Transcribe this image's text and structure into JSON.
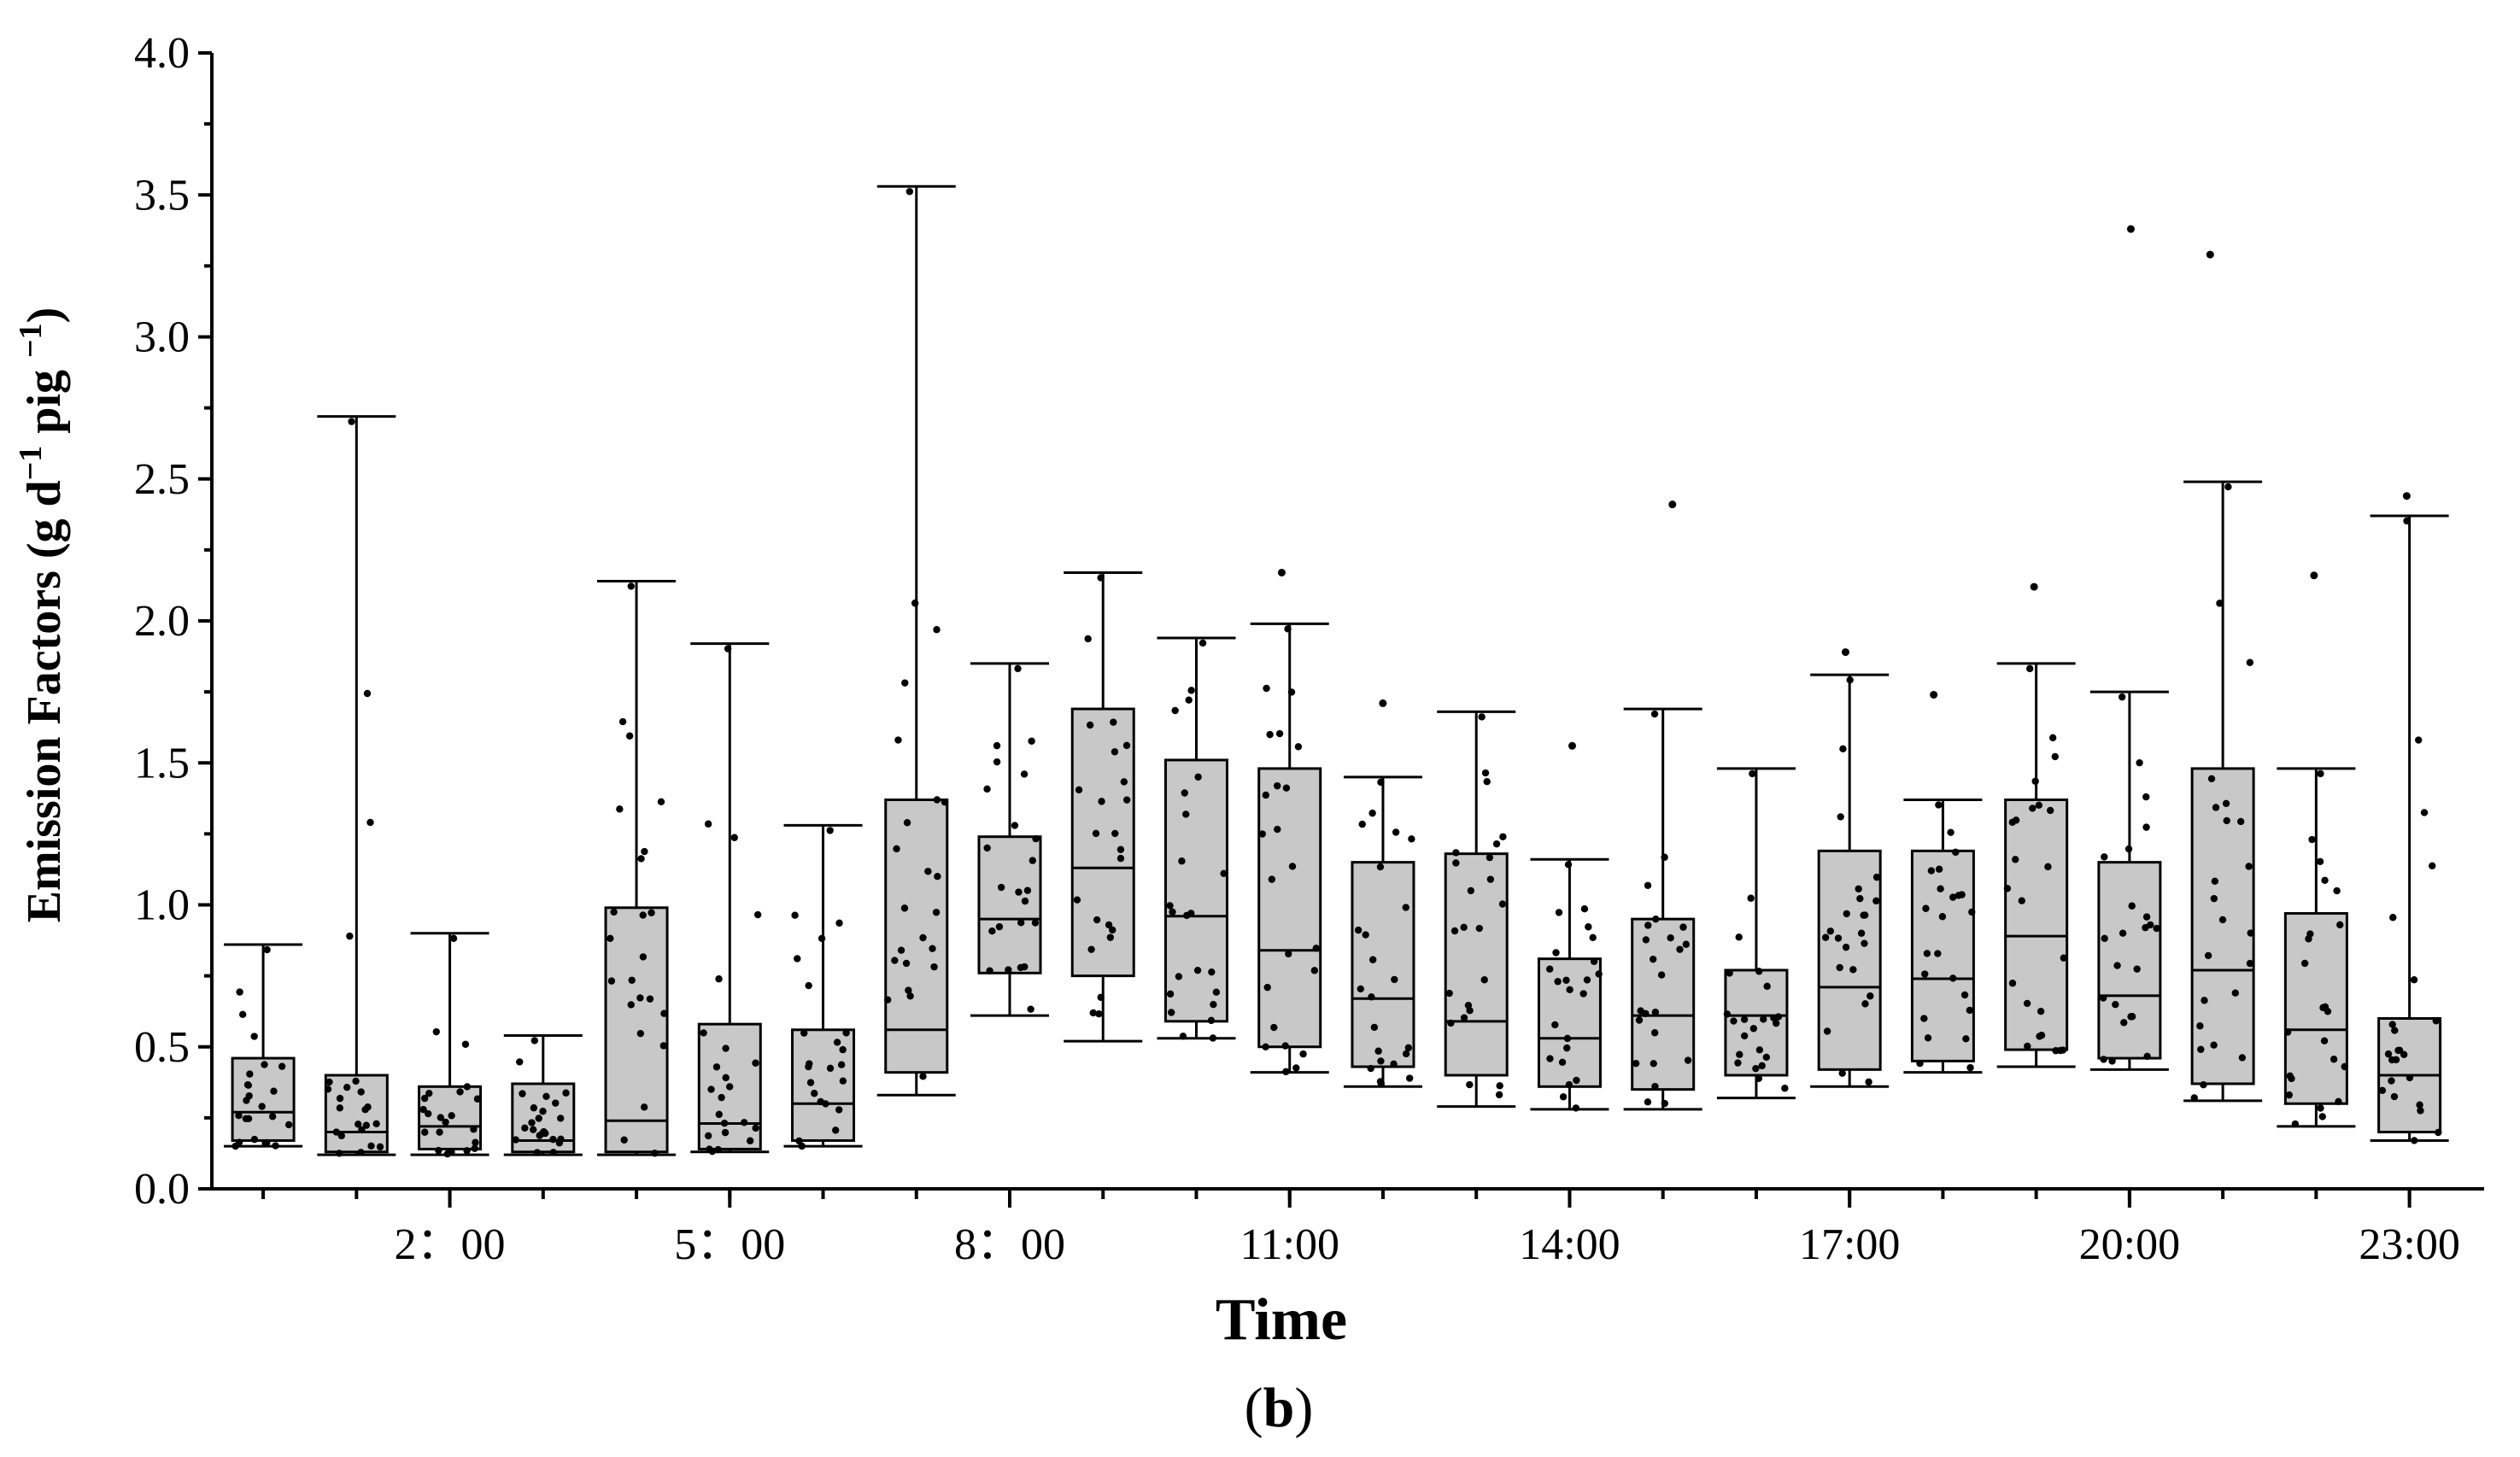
{
  "chart_data": {
    "type": "box",
    "title": "",
    "panel_label": "(b)",
    "panel_label_parts": [
      "(",
      "b",
      ")"
    ],
    "xlabel": "Time",
    "ylabel": "Emission Factors (g d⁻¹ pig ⁻¹)",
    "ylabel_parts": [
      "Emission Factors (g d",
      "−1",
      " pig ",
      "−1",
      ")"
    ],
    "ylim": [
      0,
      4
    ],
    "yticks": [
      "0.0",
      "0.5",
      "1.0",
      "1.5",
      "2.0",
      "2.5",
      "3.0",
      "3.5",
      "4.0"
    ],
    "x_tick_labels": [
      {
        "hour": 2,
        "label": "2：00"
      },
      {
        "hour": 5,
        "label": "5：00"
      },
      {
        "hour": 8,
        "label": "8：00"
      },
      {
        "hour": 11,
        "label": "11:00"
      },
      {
        "hour": 14,
        "label": "14:00"
      },
      {
        "hour": 17,
        "label": "17:00"
      },
      {
        "hour": 20,
        "label": "20:00"
      },
      {
        "hour": 23,
        "label": "23:00"
      }
    ],
    "grid": false,
    "boxes": [
      {
        "hour": 0,
        "min": 0.15,
        "q1": 0.17,
        "median": 0.27,
        "q3": 0.46,
        "max": 0.86,
        "outliers": []
      },
      {
        "hour": 1,
        "min": 0.12,
        "q1": 0.13,
        "median": 0.2,
        "q3": 0.4,
        "max": 2.72,
        "outliers": []
      },
      {
        "hour": 2,
        "min": 0.12,
        "q1": 0.14,
        "median": 0.22,
        "q3": 0.36,
        "max": 0.9,
        "outliers": []
      },
      {
        "hour": 3,
        "min": 0.12,
        "q1": 0.13,
        "median": 0.17,
        "q3": 0.37,
        "max": 0.54,
        "outliers": []
      },
      {
        "hour": 4,
        "min": 0.12,
        "q1": 0.13,
        "median": 0.24,
        "q3": 0.99,
        "max": 2.14,
        "outliers": []
      },
      {
        "hour": 5,
        "min": 0.13,
        "q1": 0.14,
        "median": 0.23,
        "q3": 0.58,
        "max": 1.92,
        "outliers": []
      },
      {
        "hour": 6,
        "min": 0.15,
        "q1": 0.17,
        "median": 0.3,
        "q3": 0.56,
        "max": 1.28,
        "outliers": []
      },
      {
        "hour": 7,
        "min": 0.33,
        "q1": 0.41,
        "median": 0.56,
        "q3": 1.37,
        "max": 3.53,
        "outliers": []
      },
      {
        "hour": 8,
        "min": 0.61,
        "q1": 0.76,
        "median": 0.95,
        "q3": 1.24,
        "max": 1.85,
        "outliers": []
      },
      {
        "hour": 9,
        "min": 0.52,
        "q1": 0.75,
        "median": 1.13,
        "q3": 1.69,
        "max": 2.17,
        "outliers": []
      },
      {
        "hour": 10,
        "min": 0.53,
        "q1": 0.59,
        "median": 0.96,
        "q3": 1.51,
        "max": 1.94,
        "outliers": []
      },
      {
        "hour": 11,
        "min": 0.41,
        "q1": 0.5,
        "median": 0.84,
        "q3": 1.48,
        "max": 1.99,
        "outliers": [
          2.17
        ]
      },
      {
        "hour": 12,
        "min": 0.36,
        "q1": 0.43,
        "median": 0.67,
        "q3": 1.15,
        "max": 1.45,
        "outliers": [
          1.71
        ]
      },
      {
        "hour": 13,
        "min": 0.29,
        "q1": 0.4,
        "median": 0.59,
        "q3": 1.18,
        "max": 1.68,
        "outliers": []
      },
      {
        "hour": 14,
        "min": 0.28,
        "q1": 0.36,
        "median": 0.53,
        "q3": 0.81,
        "max": 1.16,
        "outliers": [
          1.56
        ]
      },
      {
        "hour": 15,
        "min": 0.28,
        "q1": 0.35,
        "median": 0.61,
        "q3": 0.95,
        "max": 1.69,
        "outliers": [
          2.41
        ]
      },
      {
        "hour": 16,
        "min": 0.32,
        "q1": 0.4,
        "median": 0.61,
        "q3": 0.77,
        "max": 1.48,
        "outliers": []
      },
      {
        "hour": 17,
        "min": 0.36,
        "q1": 0.42,
        "median": 0.71,
        "q3": 1.19,
        "max": 1.81,
        "outliers": [
          1.89
        ]
      },
      {
        "hour": 18,
        "min": 0.41,
        "q1": 0.45,
        "median": 0.74,
        "q3": 1.19,
        "max": 1.37,
        "outliers": [
          1.74
        ]
      },
      {
        "hour": 19,
        "min": 0.43,
        "q1": 0.49,
        "median": 0.89,
        "q3": 1.37,
        "max": 1.85,
        "outliers": [
          2.12
        ]
      },
      {
        "hour": 20,
        "min": 0.42,
        "q1": 0.46,
        "median": 0.68,
        "q3": 1.15,
        "max": 1.75,
        "outliers": [
          3.38
        ]
      },
      {
        "hour": 21,
        "min": 0.31,
        "q1": 0.37,
        "median": 0.77,
        "q3": 1.48,
        "max": 2.49,
        "outliers": [
          3.29
        ]
      },
      {
        "hour": 22,
        "min": 0.22,
        "q1": 0.3,
        "median": 0.56,
        "q3": 0.97,
        "max": 1.48,
        "outliers": [
          2.16
        ]
      },
      {
        "hour": 23,
        "min": 0.17,
        "q1": 0.2,
        "median": 0.4,
        "q3": 0.6,
        "max": 2.37,
        "outliers": [
          2.44
        ]
      }
    ]
  }
}
